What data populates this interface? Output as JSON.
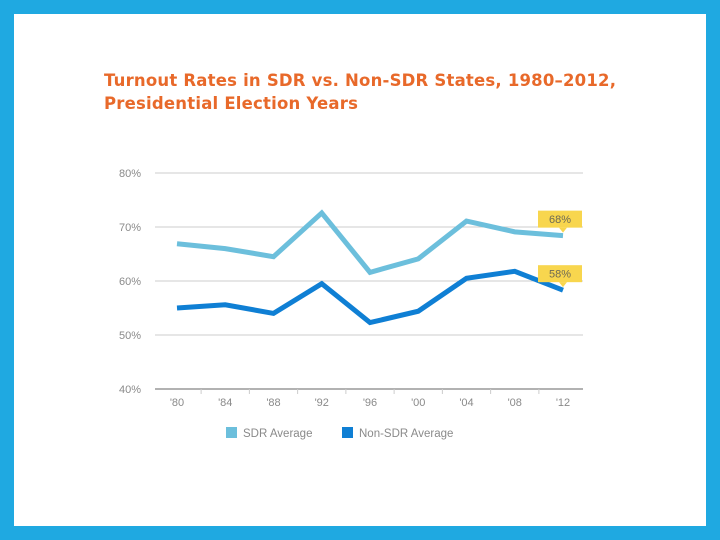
{
  "colors": {
    "frame": "#1fa9e1",
    "title": "#e8692a",
    "sdr": "#6cbfdc",
    "non_sdr": "#0f7fd4",
    "callout": "#f8d64e",
    "grid": "#cccccc",
    "axis": "#999999"
  },
  "chart_data": {
    "type": "line",
    "title_lines": [
      "Turnout Rates in SDR vs. Non-SDR States, 1980–2012,",
      "Presidential Election Years"
    ],
    "xlabel": "",
    "ylabel": "",
    "categories": [
      "'80",
      "'84",
      "'88",
      "'92",
      "'96",
      "'00",
      "'04",
      "'08",
      "'12"
    ],
    "ylim": [
      40,
      80
    ],
    "yticks": [
      40,
      50,
      60,
      70,
      80
    ],
    "ytick_labels": [
      "40%",
      "50%",
      "60%",
      "70%",
      "80%"
    ],
    "grid": true,
    "series": [
      {
        "name": "SDR Average",
        "color": "#6cbfdc",
        "values": [
          66.9,
          66.0,
          64.5,
          72.6,
          61.6,
          64.1,
          71.1,
          69.1,
          68.4
        ],
        "end_label": "68%"
      },
      {
        "name": "Non-SDR Average",
        "color": "#0f7fd4",
        "values": [
          55.0,
          55.6,
          54.0,
          59.5,
          52.3,
          54.4,
          60.5,
          61.8,
          58.3
        ],
        "end_label": "58%"
      }
    ],
    "legend": {
      "position": "bottom",
      "entries": [
        "SDR Average",
        "Non-SDR Average"
      ]
    }
  }
}
